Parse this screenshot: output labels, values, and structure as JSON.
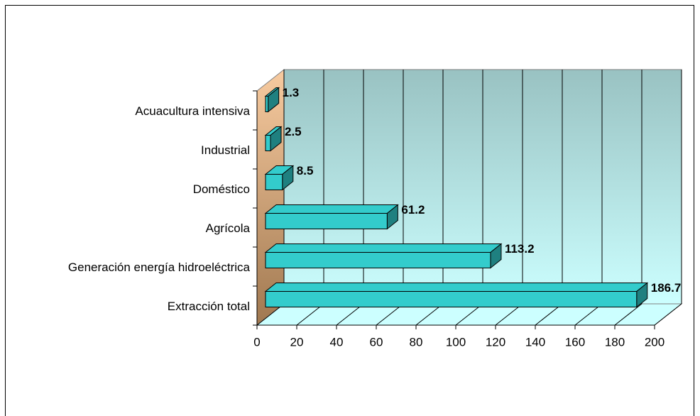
{
  "chart_data": {
    "type": "bar3d_horizontal",
    "categories": [
      "Acuacultura intensiva",
      "Industrial",
      "Doméstico",
      "Agrícola",
      "Generación energía hidroeléctrica",
      "Extracción total"
    ],
    "values": [
      1.3,
      2.5,
      8.5,
      61.2,
      113.2,
      186.7
    ],
    "color": "#33cccc",
    "xlim": [
      0,
      200
    ],
    "xticks": [
      0,
      20,
      40,
      60,
      80,
      100,
      120,
      140,
      160,
      180,
      200
    ],
    "grid": true
  }
}
